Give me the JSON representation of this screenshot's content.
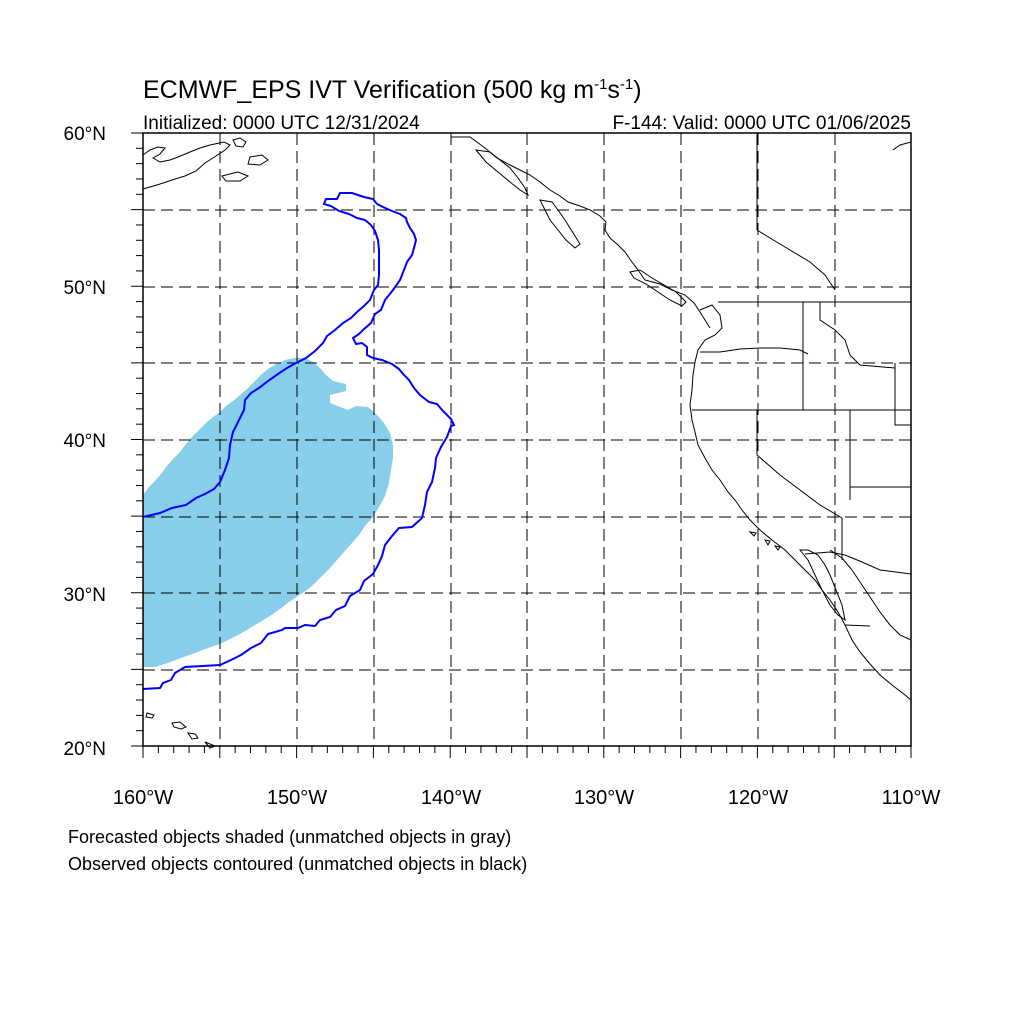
{
  "title": {
    "main": "ECMWF_EPS IVT Verification (500 kg m",
    "sup1": "-1",
    "mid": "s",
    "sup2": "-1",
    "end": ")"
  },
  "initialized": "Initialized: 0000 UTC 12/31/2024",
  "valid": "F-144: Valid: 0000 UTC 01/06/2025",
  "lat_labels": [
    "60°N",
    "50°N",
    "40°N",
    "30°N",
    "20°N"
  ],
  "lon_labels": [
    "160°W",
    "150°W",
    "140°W",
    "130°W",
    "120°W",
    "110°W"
  ],
  "caption": {
    "line1": "Forecasted objects shaded (unmatched objects in gray)",
    "line2": "Observed objects contoured (unmatched objects in black)"
  },
  "map": {
    "lon_range": [
      -160,
      -110
    ],
    "lat_range": [
      20,
      60
    ],
    "grid_spacing_deg": 5,
    "forecast_fill_color": "#87ceeb",
    "observed_contour_color": "#0000ff"
  }
}
